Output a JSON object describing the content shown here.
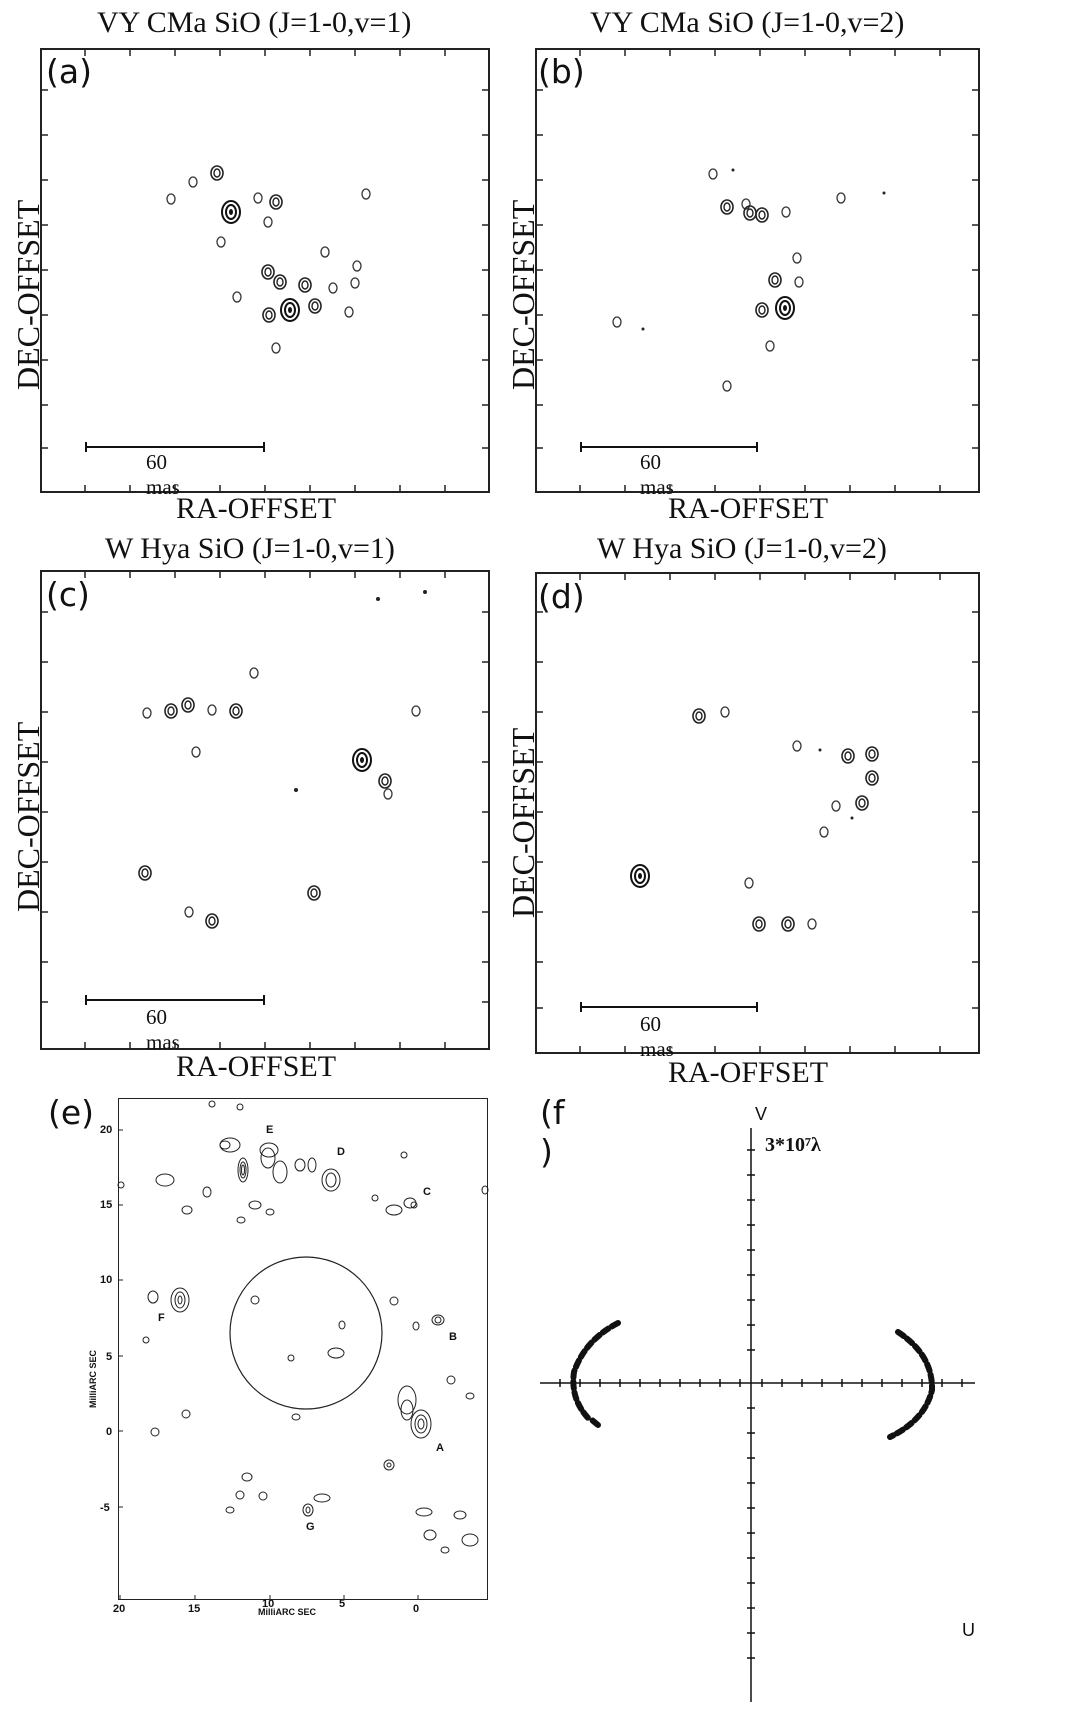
{
  "panels": {
    "a": {
      "tag": "(a)",
      "title": "VY CMa   SiO (J=1-0,v=1)",
      "ylabel": "DEC-OFFSET",
      "xlabel": "RA-OFFSET",
      "scale": "60 mas"
    },
    "b": {
      "tag": "(b)",
      "title": "VY CMa   SiO (J=1-0,v=2)",
      "ylabel": "DEC-OFFSET",
      "xlabel": "RA-OFFSET",
      "scale": "60 mas"
    },
    "c": {
      "tag": "(c)",
      "title": "W Hya      SiO (J=1-0,v=1)",
      "ylabel": "DEC-OFFSET",
      "xlabel": "RA-OFFSET",
      "scale": "60 mas"
    },
    "d": {
      "tag": "(d)",
      "title": "W Hya     SiO (J=1-0,v=2)",
      "ylabel": "DEC-OFFSET",
      "xlabel": "RA-OFFSET",
      "scale": "60 mas"
    },
    "e": {
      "tag": "(e)",
      "ylabel": "MilliARC SEC",
      "xlabel": "MilliARC SEC",
      "xticks": [
        "20",
        "15",
        "10",
        "5",
        "0"
      ],
      "yticks": [
        "20",
        "15",
        "10",
        "5",
        "0",
        "-5"
      ],
      "labels": [
        "A",
        "B",
        "C",
        "D",
        "E",
        "F",
        "G"
      ]
    },
    "f": {
      "tag": "(f )",
      "vaxis": "V",
      "uaxis": "U",
      "scale": "3*10⁷λ"
    }
  }
}
